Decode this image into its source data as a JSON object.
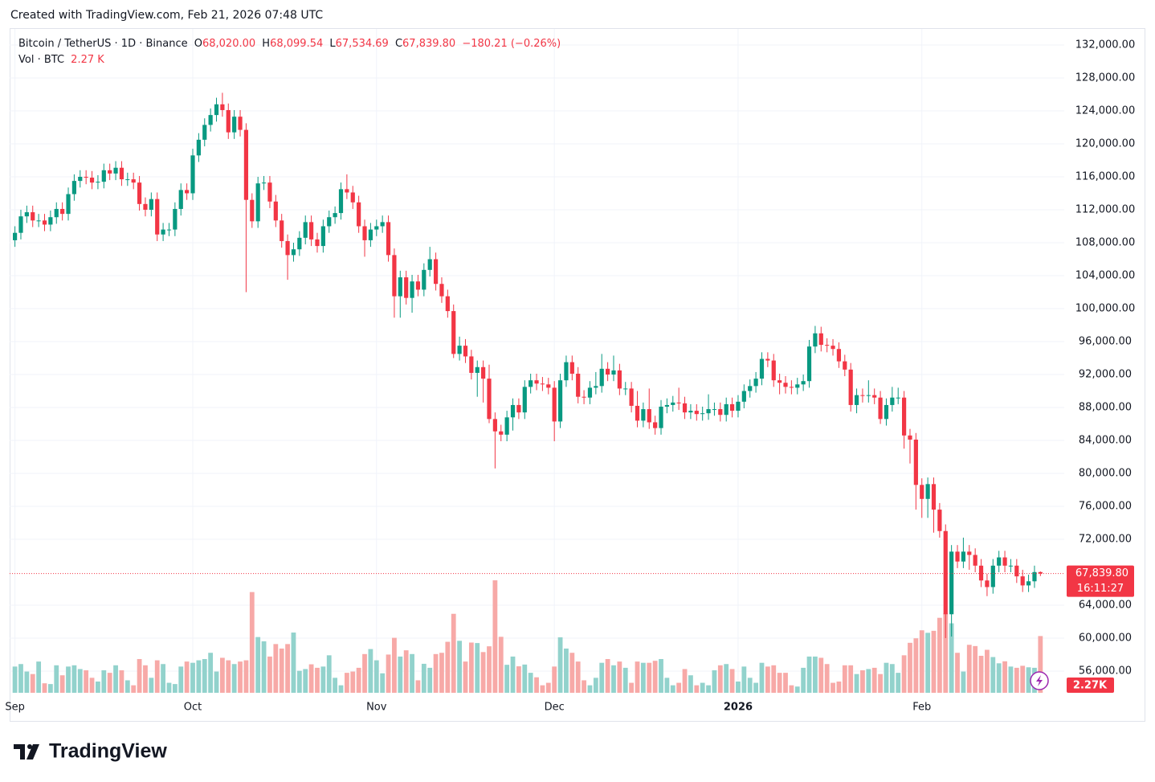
{
  "header": "Created with TradingView.com, Feb 21, 2026 07:48 UTC",
  "footer": {
    "brand": "TradingView"
  },
  "chart_data": {
    "type": "candlestick",
    "title": "Bitcoin / TetherUS · 1D · Binance",
    "legend": {
      "open_label": "O",
      "open": "68,020.00",
      "high_label": "H",
      "high": "68,099.54",
      "low_label": "L",
      "low": "67,534.69",
      "close_label": "C",
      "close": "67,839.80",
      "change": "−180.21 (−0.26%)",
      "volume_title": "Vol · BTC",
      "volume": "2.27 K"
    },
    "price_tag": "67,839.80",
    "countdown": "16:11:27",
    "volume_tag": "2.27K",
    "up_color": "#089981",
    "down_color": "#f23645",
    "volume_up_color": "#92d2cc",
    "volume_down_color": "#f7a9a7",
    "grid": true,
    "categories": [
      "Sep",
      null,
      null,
      null,
      null,
      null,
      null,
      null,
      null,
      null,
      null,
      null,
      null,
      null,
      null,
      null,
      null,
      null,
      null,
      null,
      null,
      null,
      null,
      null,
      null,
      null,
      null,
      null,
      null,
      null,
      "Oct",
      null,
      null,
      null,
      null,
      null,
      null,
      null,
      null,
      null,
      null,
      null,
      null,
      null,
      null,
      null,
      null,
      null,
      null,
      null,
      null,
      null,
      null,
      null,
      null,
      null,
      null,
      null,
      null,
      null,
      null,
      "Nov",
      null,
      null,
      null,
      null,
      null,
      null,
      null,
      null,
      null,
      null,
      null,
      null,
      null,
      null,
      null,
      null,
      null,
      null,
      null,
      null,
      null,
      null,
      null,
      null,
      null,
      null,
      null,
      null,
      null,
      "Dec",
      null,
      null,
      null,
      null,
      null,
      null,
      null,
      null,
      null,
      null,
      null,
      null,
      null,
      null,
      null,
      null,
      null,
      null,
      null,
      null,
      null,
      null,
      null,
      null,
      null,
      null,
      null,
      null,
      null,
      null,
      "2026",
      null,
      null,
      null,
      null,
      null,
      null,
      null,
      null,
      null,
      null,
      null,
      null,
      null,
      null,
      null,
      null,
      null,
      null,
      null,
      null,
      null,
      null,
      null,
      null,
      null,
      null,
      null,
      null,
      null,
      null,
      "Feb",
      null,
      null,
      null,
      null,
      null,
      null,
      null,
      null,
      null,
      null,
      null,
      null,
      null,
      null,
      null,
      null,
      null,
      null,
      null,
      null
    ],
    "open": [
      108300,
      109200,
      111200,
      111700,
      110700,
      110700,
      110200,
      111100,
      112100,
      111500,
      113900,
      115500,
      116000,
      115900,
      115300,
      115400,
      116800,
      116400,
      117100,
      115700,
      115700,
      115300,
      112700,
      112000,
      113300,
      109000,
      109600,
      109600,
      112100,
      114400,
      114000,
      118600,
      120500,
      122300,
      123500,
      124800,
      124100,
      121400,
      123300,
      121700,
      113200,
      110600,
      115200,
      115300,
      113000,
      110700,
      108200,
      106500,
      107200,
      108600,
      110500,
      108400,
      107600,
      110000,
      111100,
      111600,
      114500,
      114100,
      112900,
      110000,
      108300,
      109600,
      110000,
      110500,
      106500,
      101500,
      103800,
      101300,
      103300,
      102300,
      104700,
      106000,
      103000,
      101500,
      99700,
      94500,
      95500,
      94200,
      92200,
      92900,
      91500,
      86600,
      85100,
      84700,
      86800,
      88300,
      87400,
      90500,
      91300,
      90900,
      90800,
      90400,
      86300,
      91300,
      93500,
      92100,
      89300,
      89200,
      90400,
      90600,
      92700,
      92000,
      92500,
      90300,
      90300,
      88200,
      86400,
      87800,
      86200,
      85500,
      88100,
      88300,
      88600,
      88500,
      87400,
      87600,
      87200,
      87300,
      87800,
      87800,
      87100,
      88400,
      87600,
      88700,
      90000,
      90600,
      91500,
      93900,
      93700,
      91300,
      91000,
      90500,
      90400,
      90800,
      91200,
      95400,
      97000,
      95600,
      95500,
      95100,
      93600,
      92600,
      88300,
      89500,
      89400,
      89500,
      89200,
      86600,
      88300,
      89200,
      89200,
      84600,
      84100,
      78600,
      76900,
      78700,
      75600,
      73000,
      62900,
      70500,
      69300,
      70500,
      70100,
      68800,
      67000,
      66200,
      68800,
      69800,
      68800,
      68800,
      67500,
      66400,
      66900,
      68020
    ],
    "high": [
      110000,
      112000,
      112500,
      112500,
      111500,
      111500,
      111900,
      112900,
      112900,
      114700,
      116300,
      116800,
      116800,
      116700,
      116200,
      117600,
      117600,
      117900,
      117900,
      116500,
      116500,
      116100,
      113500,
      114100,
      114100,
      110400,
      110400,
      112900,
      115200,
      115200,
      119400,
      121300,
      123100,
      124300,
      125600,
      126200,
      124900,
      124100,
      124100,
      122500,
      114000,
      116000,
      116100,
      116100,
      113800,
      111500,
      109000,
      108000,
      109400,
      111300,
      111300,
      109200,
      110800,
      111900,
      112400,
      115300,
      116300,
      114900,
      113700,
      110800,
      110400,
      110800,
      111300,
      111300,
      107300,
      104600,
      104600,
      104100,
      104100,
      105500,
      107500,
      106800,
      103800,
      102300,
      100500,
      96600,
      96300,
      95000,
      93700,
      93700,
      93200,
      87400,
      85900,
      87600,
      89100,
      89100,
      91300,
      92100,
      92100,
      91700,
      91600,
      91200,
      92100,
      94300,
      94300,
      92900,
      90100,
      91200,
      92300,
      94500,
      93500,
      94300,
      93300,
      91100,
      91100,
      90000,
      88600,
      90300,
      87000,
      88900,
      89100,
      89400,
      90400,
      89300,
      88400,
      88400,
      88100,
      89600,
      88600,
      88600,
      89200,
      89200,
      89500,
      90800,
      91400,
      92300,
      94700,
      94700,
      94500,
      92100,
      91800,
      91300,
      91600,
      92000,
      96200,
      97900,
      97800,
      96400,
      96300,
      95900,
      94400,
      93400,
      90300,
      90300,
      91300,
      90300,
      90000,
      89100,
      90500,
      90400,
      90000,
      85400,
      84900,
      79400,
      79500,
      79500,
      76400,
      73800,
      71300,
      71300,
      72200,
      71300,
      70900,
      69600,
      67800,
      69600,
      70600,
      70600,
      69600,
      69600,
      68300,
      67700,
      68800,
      68099.54
    ],
    "low": [
      107500,
      108400,
      110400,
      109900,
      109900,
      109400,
      109400,
      110300,
      110700,
      110700,
      113100,
      114700,
      115100,
      114500,
      114500,
      114600,
      115600,
      115600,
      114900,
      114900,
      114500,
      111900,
      111200,
      111200,
      108200,
      108200,
      108800,
      108800,
      111300,
      113200,
      113200,
      117800,
      119700,
      121500,
      122700,
      123300,
      120600,
      120600,
      120900,
      102000,
      109800,
      109800,
      114400,
      112200,
      109900,
      107400,
      103500,
      105700,
      106400,
      107800,
      107600,
      106800,
      106800,
      109200,
      110300,
      110800,
      113300,
      112100,
      109200,
      106300,
      107500,
      108800,
      109200,
      105700,
      98900,
      98900,
      100500,
      99500,
      101500,
      101500,
      103900,
      102200,
      100700,
      98900,
      94000,
      93700,
      93400,
      91400,
      89300,
      88600,
      86100,
      80600,
      83900,
      83900,
      85200,
      86600,
      86600,
      89700,
      90100,
      90000,
      89600,
      83900,
      85500,
      90500,
      91300,
      88500,
      88400,
      88400,
      89600,
      89800,
      91200,
      91200,
      89500,
      89500,
      87400,
      85600,
      85600,
      85400,
      84700,
      84700,
      87300,
      87500,
      87700,
      86600,
      86600,
      86400,
      86400,
      86500,
      87000,
      86300,
      86300,
      86800,
      86800,
      87900,
      89200,
      89800,
      90700,
      92900,
      90500,
      89600,
      89700,
      89600,
      89600,
      90000,
      90400,
      94600,
      94800,
      94700,
      94300,
      92800,
      91800,
      87500,
      87300,
      88600,
      88600,
      88400,
      86000,
      85800,
      87500,
      88400,
      83000,
      81200,
      75600,
      74600,
      74600,
      72800,
      72200,
      60000,
      60200,
      68500,
      68500,
      68300,
      68000,
      66200,
      65100,
      65400,
      68000,
      68000,
      68000,
      66700,
      65600,
      65600,
      66100,
      67534.69
    ],
    "close": [
      109200,
      111200,
      111700,
      110700,
      110700,
      110200,
      111100,
      112100,
      111500,
      113900,
      115500,
      116000,
      115900,
      115300,
      115400,
      116800,
      116400,
      117100,
      115700,
      115700,
      115300,
      112700,
      112000,
      113300,
      109000,
      109600,
      109600,
      112100,
      114400,
      114000,
      118600,
      120500,
      122300,
      123500,
      124800,
      124100,
      121400,
      123300,
      121700,
      113200,
      110600,
      115200,
      115300,
      113000,
      110700,
      108200,
      106500,
      107200,
      108600,
      110500,
      108400,
      107600,
      110000,
      111100,
      111600,
      114500,
      114100,
      112900,
      110000,
      108300,
      109600,
      110000,
      110500,
      106500,
      101500,
      103800,
      101300,
      103300,
      102300,
      104700,
      106000,
      103000,
      101500,
      99700,
      94500,
      95500,
      94200,
      92200,
      92900,
      91500,
      86600,
      85100,
      84700,
      86800,
      88300,
      87400,
      90500,
      91300,
      90900,
      90800,
      90400,
      86300,
      91300,
      93500,
      92100,
      89300,
      89200,
      90400,
      90600,
      92700,
      92000,
      92500,
      90300,
      90300,
      88200,
      86400,
      87800,
      86200,
      85500,
      88100,
      88300,
      88600,
      88500,
      87400,
      87600,
      87200,
      87300,
      87800,
      87800,
      87100,
      88400,
      87600,
      88700,
      90000,
      90600,
      91500,
      93900,
      93700,
      91300,
      91000,
      90500,
      90400,
      90800,
      91200,
      95400,
      97000,
      95600,
      95500,
      95100,
      93600,
      92600,
      88300,
      89500,
      89400,
      89500,
      89200,
      86600,
      88300,
      89200,
      89200,
      84600,
      84100,
      78600,
      76900,
      78700,
      75600,
      73000,
      62900,
      70500,
      69300,
      70500,
      70100,
      68800,
      67000,
      66200,
      68800,
      69800,
      68800,
      68800,
      67500,
      66400,
      66900,
      68020,
      67839.8
    ],
    "volume": [
      1050,
      1150,
      850,
      750,
      1250,
      380,
      350,
      1100,
      700,
      1050,
      1100,
      950,
      900,
      600,
      450,
      900,
      800,
      1100,
      900,
      500,
      300,
      1350,
      1100,
      600,
      1300,
      1150,
      400,
      350,
      1050,
      1250,
      1200,
      1300,
      1350,
      1600,
      850,
      1400,
      1300,
      1150,
      1250,
      1300,
      4030,
      2230,
      2060,
      1450,
      1950,
      1770,
      1950,
      2410,
      880,
      950,
      1140,
      1000,
      1050,
      1500,
      600,
      300,
      800,
      850,
      1000,
      1550,
      1750,
      1300,
      780,
      1530,
      2200,
      1450,
      1700,
      1550,
      500,
      1160,
      1000,
      1550,
      1600,
      2040,
      3160,
      2080,
      1250,
      2010,
      1990,
      1630,
      1860,
      4500,
      2240,
      1120,
      1450,
      1060,
      1130,
      800,
      620,
      300,
      400,
      1050,
      2220,
      1770,
      1600,
      1250,
      500,
      300,
      600,
      1200,
      1350,
      1100,
      1250,
      1000,
      400,
      1250,
      1200,
      1200,
      1280,
      1350,
      600,
      300,
      400,
      950,
      700,
      300,
      400,
      300,
      900,
      1100,
      1150,
      950,
      450,
      1050,
      600,
      400,
      1200,
      1050,
      1100,
      800,
      800,
      300,
      250,
      1000,
      1450,
      1450,
      1400,
      1150,
      400,
      450,
      1100,
      1100,
      750,
      900,
      950,
      1000,
      750,
      1200,
      1150,
      800,
      1500,
      2000,
      2180,
      2500,
      2400,
      2480,
      3000,
      3180,
      2780,
      1600,
      850,
      1920,
      1870,
      1480,
      1720,
      1430,
      1180,
      1260,
      1050,
      1000,
      1080,
      1020,
      1000,
      2270
    ],
    "ylim": [
      53366,
      133951
    ],
    "volume_ylim": [
      0,
      26560
    ],
    "yticks": [
      {
        "value": 132000,
        "label": "132,000.00"
      },
      {
        "value": 128000,
        "label": "128,000.00"
      },
      {
        "value": 124000,
        "label": "124,000.00"
      },
      {
        "value": 120000,
        "label": "120,000.00"
      },
      {
        "value": 116000,
        "label": "116,000.00"
      },
      {
        "value": 112000,
        "label": "112,000.00"
      },
      {
        "value": 108000,
        "label": "108,000.00"
      },
      {
        "value": 104000,
        "label": "104,000.00"
      },
      {
        "value": 100000,
        "label": "100,000.00"
      },
      {
        "value": 96000,
        "label": "96,000.00"
      },
      {
        "value": 92000,
        "label": "92,000.00"
      },
      {
        "value": 88000,
        "label": "88,000.00"
      },
      {
        "value": 84000,
        "label": "84,000.00"
      },
      {
        "value": 80000,
        "label": "80,000.00"
      },
      {
        "value": 76000,
        "label": "76,000.00"
      },
      {
        "value": 72000,
        "label": "72,000.00"
      },
      {
        "value": 64000,
        "label": "64,000.00"
      },
      {
        "value": 60000,
        "label": "60,000.00"
      },
      {
        "value": 56000,
        "label": "56,000.00"
      }
    ]
  }
}
